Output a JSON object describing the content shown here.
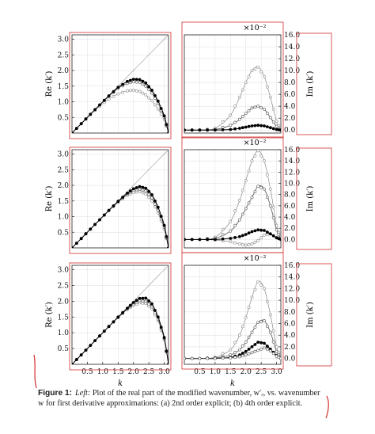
{
  "figure": {
    "caption_label": "Figure 1:",
    "caption_lead": "Left:",
    "caption_text": "Plot of the real part of the modified wavenumber, w′ᵣ, vs. wavenumber w for first derivative approximations: (a) 2nd order explicit; (b) 4th order explicit.",
    "scale_note": "×10⁻²",
    "colors": {
      "exact": "#9a9a9a",
      "light": "#888888",
      "mid": "#555555",
      "dark": "#000000",
      "annotation": "#d32f2f",
      "grid": "#dddddd"
    }
  },
  "chart_data": [
    {
      "type": "line",
      "panel": "left-row1",
      "xlabel": "",
      "ylabel": "Re (k′)",
      "xlim": [
        0,
        3.14
      ],
      "ylim": [
        0,
        3.14
      ],
      "xticks": [],
      "yticks": [
        "0.5",
        "1.0",
        "1.5",
        "2.0",
        "2.5",
        "3.0"
      ],
      "grid": true,
      "x": [
        0,
        0.3,
        0.6,
        0.9,
        1.2,
        1.5,
        1.8,
        2.0,
        2.2,
        2.4,
        2.6,
        2.8,
        3.0,
        3.14
      ],
      "series": [
        {
          "style": "exact",
          "values": [
            0,
            0.3,
            0.6,
            0.9,
            1.2,
            1.5,
            1.8,
            2.0,
            2.2,
            2.4,
            2.6,
            2.8,
            3.0,
            3.14
          ]
        },
        {
          "style": "light",
          "values": [
            0,
            0.3,
            0.59,
            0.86,
            1.09,
            1.25,
            1.35,
            1.37,
            1.33,
            1.22,
            1.03,
            0.77,
            0.44,
            0.0
          ]
        },
        {
          "style": "mid",
          "values": [
            0,
            0.3,
            0.6,
            0.9,
            1.18,
            1.43,
            1.59,
            1.64,
            1.62,
            1.5,
            1.28,
            0.95,
            0.5,
            0.0
          ]
        },
        {
          "style": "dark",
          "values": [
            0,
            0.3,
            0.6,
            0.9,
            1.19,
            1.46,
            1.65,
            1.72,
            1.71,
            1.6,
            1.37,
            1.02,
            0.55,
            0.0
          ]
        }
      ]
    },
    {
      "type": "line",
      "panel": "right-row1",
      "xlabel": "",
      "ylabel": "Im (k′)",
      "xlim": [
        0,
        3.14
      ],
      "ylim": [
        -0.5,
        16.0
      ],
      "xticks": [],
      "yticks": [
        "0.0",
        "2.0",
        "4.0",
        "6.0",
        "8.0",
        "10.0",
        "12.0",
        "14.0",
        "16.0"
      ],
      "grid": true,
      "x": [
        0,
        0.5,
        1.0,
        1.5,
        1.8,
        2.0,
        2.2,
        2.4,
        2.6,
        2.8,
        3.0,
        3.14
      ],
      "series": [
        {
          "style": "light",
          "values": [
            0,
            0.0,
            0.3,
            2.5,
            5.5,
            8.0,
            10.0,
            10.6,
            9.0,
            5.5,
            1.5,
            0.0
          ]
        },
        {
          "style": "mid",
          "values": [
            0,
            0.0,
            0.1,
            0.8,
            1.8,
            2.8,
            3.7,
            4.0,
            3.5,
            2.1,
            0.6,
            0.0
          ]
        },
        {
          "style": "dark",
          "values": [
            0,
            0.0,
            0.0,
            0.1,
            0.3,
            0.5,
            0.7,
            0.8,
            0.7,
            0.4,
            0.1,
            0.0
          ]
        }
      ]
    },
    {
      "type": "line",
      "panel": "left-row2",
      "xlabel": "",
      "ylabel": "Re (k′)",
      "xlim": [
        0,
        3.14
      ],
      "ylim": [
        0,
        3.14
      ],
      "xticks": [],
      "yticks": [
        "0.5",
        "1.0",
        "1.5",
        "2.0",
        "2.5",
        "3.0"
      ],
      "grid": true,
      "x": [
        0,
        0.3,
        0.6,
        0.9,
        1.2,
        1.5,
        1.8,
        2.0,
        2.2,
        2.4,
        2.6,
        2.8,
        3.0,
        3.14
      ],
      "series": [
        {
          "style": "exact",
          "values": [
            0,
            0.3,
            0.6,
            0.9,
            1.2,
            1.5,
            1.8,
            2.0,
            2.2,
            2.4,
            2.6,
            2.8,
            3.0,
            3.14
          ]
        },
        {
          "style": "light",
          "values": [
            0,
            0.3,
            0.6,
            0.9,
            1.19,
            1.46,
            1.68,
            1.77,
            1.8,
            1.72,
            1.5,
            1.12,
            0.6,
            0.0
          ]
        },
        {
          "style": "mid",
          "values": [
            0,
            0.3,
            0.6,
            0.9,
            1.2,
            1.48,
            1.72,
            1.84,
            1.88,
            1.82,
            1.6,
            1.2,
            0.66,
            0.0
          ]
        },
        {
          "style": "dark",
          "values": [
            0,
            0.3,
            0.6,
            0.9,
            1.2,
            1.49,
            1.75,
            1.89,
            1.96,
            1.91,
            1.7,
            1.3,
            0.72,
            0.0
          ]
        }
      ]
    },
    {
      "type": "line",
      "panel": "right-row2",
      "xlabel": "",
      "ylabel": "Im (k′)",
      "xlim": [
        0,
        3.14
      ],
      "ylim": [
        -1.5,
        16.0
      ],
      "xticks": [],
      "yticks": [
        "0.0",
        "2.0",
        "4.0",
        "6.0",
        "8.0",
        "10.0",
        "12.0",
        "14.0",
        "16.0"
      ],
      "grid": true,
      "x": [
        0,
        0.5,
        1.0,
        1.5,
        1.8,
        2.0,
        2.2,
        2.4,
        2.6,
        2.8,
        3.0,
        3.14
      ],
      "series": [
        {
          "style": "light",
          "values": [
            0,
            0.0,
            0.4,
            3.2,
            7.0,
            10.5,
            14.0,
            15.8,
            14.0,
            9.0,
            2.5,
            0.0
          ]
        },
        {
          "style": "mid",
          "values": [
            0,
            0.0,
            0.2,
            1.5,
            3.5,
            5.5,
            7.5,
            9.5,
            9.0,
            6.0,
            1.7,
            0.0
          ]
        },
        {
          "style": "light",
          "values": [
            0,
            0.0,
            -0.1,
            -0.4,
            -0.8,
            -1.0,
            -0.8,
            -0.2,
            0.8,
            1.0,
            0.3,
            0.0
          ]
        },
        {
          "style": "dark",
          "values": [
            0,
            0.0,
            0.0,
            0.2,
            0.5,
            0.9,
            1.4,
            1.7,
            1.6,
            1.0,
            0.3,
            0.0
          ]
        }
      ]
    },
    {
      "type": "line",
      "panel": "left-row3",
      "xlabel": "k",
      "ylabel": "Re (k′)",
      "xlim": [
        0,
        3.14
      ],
      "ylim": [
        0,
        3.14
      ],
      "xticks": [
        "0.5",
        "1.0",
        "1.5",
        "2.0",
        "2.5",
        "3.0"
      ],
      "yticks": [
        "0.5",
        "1.0",
        "1.5",
        "2.0",
        "2.5",
        "3.0"
      ],
      "grid": true,
      "x": [
        0,
        0.3,
        0.6,
        0.9,
        1.2,
        1.5,
        1.8,
        2.0,
        2.2,
        2.4,
        2.6,
        2.8,
        3.0,
        3.14
      ],
      "series": [
        {
          "style": "exact",
          "values": [
            0,
            0.3,
            0.6,
            0.9,
            1.2,
            1.5,
            1.8,
            2.0,
            2.2,
            2.4,
            2.6,
            2.8,
            3.0,
            3.14
          ]
        },
        {
          "style": "light",
          "values": [
            0,
            0.3,
            0.6,
            0.9,
            1.2,
            1.48,
            1.74,
            1.87,
            1.95,
            1.93,
            1.76,
            1.38,
            0.78,
            0.0
          ]
        },
        {
          "style": "mid",
          "values": [
            0,
            0.3,
            0.6,
            0.9,
            1.2,
            1.49,
            1.76,
            1.92,
            2.02,
            2.0,
            1.82,
            1.44,
            0.82,
            0.0
          ]
        },
        {
          "style": "dark",
          "values": [
            0,
            0.3,
            0.6,
            0.9,
            1.2,
            1.5,
            1.78,
            1.96,
            2.09,
            2.1,
            1.92,
            1.5,
            0.85,
            0.0
          ]
        }
      ]
    },
    {
      "type": "line",
      "panel": "right-row3",
      "xlabel": "k",
      "ylabel": "Im (k′)",
      "xlim": [
        0,
        3.14
      ],
      "ylim": [
        -1.0,
        16.0
      ],
      "xticks": [
        "0.5",
        "1.0",
        "1.5",
        "2.0",
        "2.5",
        "3.0"
      ],
      "yticks": [
        "0.0",
        "2.0",
        "4.0",
        "6.0",
        "8.0",
        "10.0",
        "12.0",
        "14.0",
        "16.0"
      ],
      "grid": true,
      "x": [
        0,
        0.5,
        1.0,
        1.5,
        1.8,
        2.0,
        2.2,
        2.4,
        2.6,
        2.8,
        3.0,
        3.14
      ],
      "series": [
        {
          "style": "light",
          "values": [
            0,
            0.0,
            0.2,
            1.5,
            4.0,
            7.0,
            10.5,
            13.2,
            12.0,
            7.5,
            2.0,
            0.0
          ]
        },
        {
          "style": "mid",
          "values": [
            0,
            0.0,
            0.1,
            0.6,
            1.5,
            2.8,
            4.5,
            6.2,
            6.5,
            4.5,
            1.2,
            0.0
          ]
        },
        {
          "style": "dark",
          "values": [
            0,
            0.0,
            0.0,
            0.2,
            0.6,
            1.2,
            2.0,
            2.8,
            2.6,
            1.6,
            0.5,
            0.0
          ]
        },
        {
          "style": "mid",
          "values": [
            0,
            0.0,
            0.0,
            0.1,
            0.3,
            0.6,
            1.0,
            1.4,
            1.8,
            1.3,
            0.4,
            0.0
          ]
        }
      ]
    }
  ]
}
